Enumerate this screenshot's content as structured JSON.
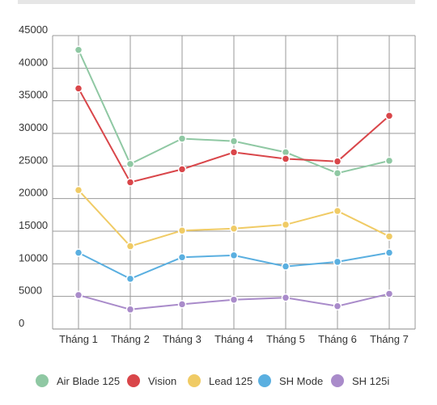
{
  "chart_data": {
    "type": "line",
    "categories": [
      "Tháng 1",
      "Tháng 2",
      "Tháng 3",
      "Tháng 4",
      "Tháng 5",
      "Tháng 6",
      "Tháng 7"
    ],
    "ylim": [
      0,
      45000
    ],
    "yticks": [
      "0",
      "5000",
      "10000",
      "15000",
      "20000",
      "25000",
      "30000",
      "35000",
      "40000",
      "45000"
    ],
    "grid": true,
    "legend_position": "bottom",
    "series": [
      {
        "name": "Air Blade 125",
        "color": "#8fc8a3",
        "values": [
          42800,
          25300,
          29200,
          28800,
          27100,
          23900,
          25800
        ]
      },
      {
        "name": "Vision",
        "color": "#d9464a",
        "values": [
          36900,
          22500,
          24500,
          27100,
          26100,
          25700,
          32700
        ]
      },
      {
        "name": "Lead 125",
        "color": "#f0cb65",
        "values": [
          21300,
          12700,
          15100,
          15400,
          16000,
          18100,
          14200
        ]
      },
      {
        "name": "SH Mode",
        "color": "#5aafe0",
        "values": [
          11700,
          7700,
          11000,
          11300,
          9600,
          10300,
          11700
        ]
      },
      {
        "name": "SH 125i",
        "color": "#a98bca",
        "values": [
          5200,
          3000,
          3800,
          4500,
          4800,
          3500,
          5400
        ]
      }
    ]
  }
}
